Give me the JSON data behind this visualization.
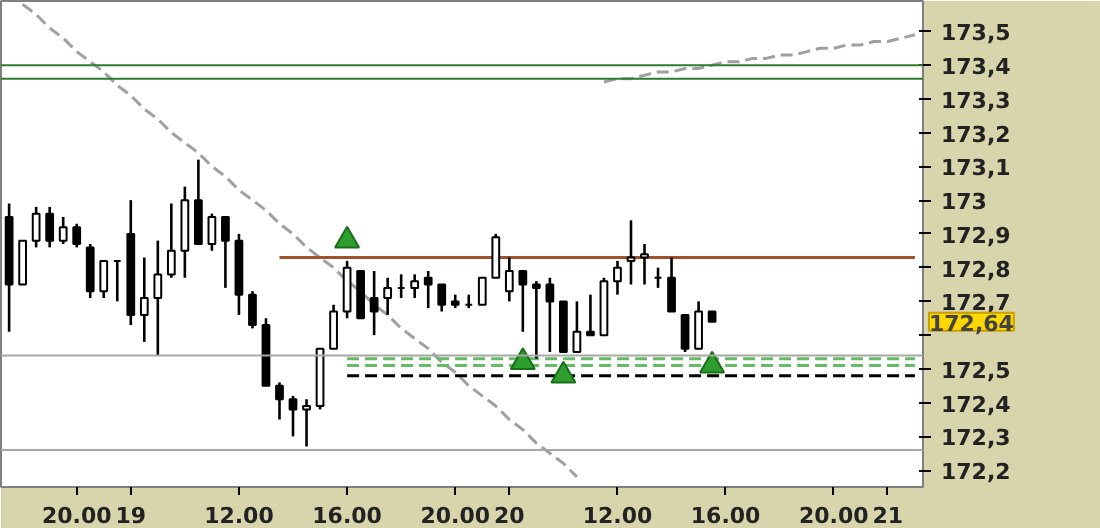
{
  "chart_data": {
    "type": "candlestick",
    "categories": [
      null,
      null,
      null,
      null,
      null,
      "20.00",
      null,
      null,
      null,
      "19",
      null,
      null,
      null,
      null,
      null,
      null,
      null,
      "12.00",
      null,
      null,
      null,
      null,
      null,
      null,
      null,
      "16.00",
      null,
      null,
      null,
      null,
      null,
      null,
      null,
      "20.00",
      null,
      null,
      null,
      "20",
      null,
      null,
      null,
      null,
      null,
      null,
      null,
      "12.00",
      null,
      null,
      null,
      null,
      null,
      null,
      null,
      "16.00",
      null,
      null,
      null,
      null,
      null,
      null,
      null,
      "20.00",
      null,
      null,
      null,
      "21",
      null,
      null
    ],
    "ohlc": [
      [
        172.95,
        172.99,
        172.61,
        172.75
      ],
      [
        172.75,
        172.88,
        172.75,
        172.88
      ],
      [
        172.88,
        172.98,
        172.86,
        172.96
      ],
      [
        172.96,
        172.98,
        172.86,
        172.88
      ],
      [
        172.88,
        172.95,
        172.87,
        172.92
      ],
      [
        172.92,
        172.93,
        172.86,
        172.87
      ],
      [
        172.86,
        172.87,
        172.71,
        172.73
      ],
      [
        172.73,
        172.82,
        172.71,
        172.82
      ],
      [
        172.82,
        172.82,
        172.7,
        172.82
      ],
      [
        172.9,
        173.0,
        172.63,
        172.66
      ],
      [
        172.66,
        172.83,
        172.58,
        172.71
      ],
      [
        172.71,
        172.88,
        172.54,
        172.78
      ],
      [
        172.78,
        172.99,
        172.77,
        172.85
      ],
      [
        172.85,
        173.04,
        172.77,
        173.0
      ],
      [
        173.0,
        173.12,
        172.87,
        172.87
      ],
      [
        172.87,
        172.96,
        172.85,
        172.95
      ],
      [
        172.95,
        172.95,
        172.74,
        172.88
      ],
      [
        172.88,
        172.9,
        172.66,
        172.72
      ],
      [
        172.72,
        172.73,
        172.62,
        172.63
      ],
      [
        172.63,
        172.65,
        172.45,
        172.45
      ],
      [
        172.45,
        172.46,
        172.35,
        172.41
      ],
      [
        172.41,
        172.42,
        172.3,
        172.38
      ],
      [
        172.38,
        172.41,
        172.27,
        172.39
      ],
      [
        172.39,
        172.56,
        172.38,
        172.56
      ],
      [
        172.56,
        172.69,
        172.56,
        172.67
      ],
      [
        172.67,
        172.82,
        172.65,
        172.8
      ],
      [
        172.79,
        172.79,
        172.65,
        172.65
      ],
      [
        172.71,
        172.79,
        172.6,
        172.67
      ],
      [
        172.71,
        172.77,
        172.66,
        172.74
      ],
      [
        172.74,
        172.78,
        172.71,
        172.74
      ],
      [
        172.74,
        172.78,
        172.71,
        172.76
      ],
      [
        172.77,
        172.79,
        172.68,
        172.75
      ],
      [
        172.75,
        172.75,
        172.67,
        172.69
      ],
      [
        172.7,
        172.72,
        172.68,
        172.69
      ],
      [
        172.69,
        172.72,
        172.68,
        172.69
      ],
      [
        172.69,
        172.77,
        172.69,
        172.77
      ],
      [
        172.77,
        172.9,
        172.77,
        172.89
      ],
      [
        172.73,
        172.83,
        172.7,
        172.79
      ],
      [
        172.79,
        172.79,
        172.61,
        172.75
      ],
      [
        172.75,
        172.76,
        172.53,
        172.74
      ],
      [
        172.75,
        172.77,
        172.55,
        172.7
      ],
      [
        172.7,
        172.7,
        172.55,
        172.55
      ],
      [
        172.55,
        172.7,
        172.55,
        172.61
      ],
      [
        172.61,
        172.72,
        172.6,
        172.6
      ],
      [
        172.6,
        172.77,
        172.6,
        172.76
      ],
      [
        172.76,
        172.82,
        172.72,
        172.8
      ],
      [
        172.82,
        172.94,
        172.75,
        172.83
      ],
      [
        172.83,
        172.87,
        172.75,
        172.84
      ],
      [
        172.77,
        172.8,
        172.74,
        172.77
      ],
      [
        172.77,
        172.83,
        172.67,
        172.67
      ],
      [
        172.66,
        172.66,
        172.55,
        172.56
      ],
      [
        172.56,
        172.7,
        172.56,
        172.67
      ],
      [
        172.67,
        172.67,
        172.64,
        172.64
      ],
      null,
      null,
      null,
      null,
      null,
      null,
      null,
      null,
      null,
      null,
      null,
      null,
      null,
      null,
      null
    ],
    "color": "#000000",
    "series": [
      {
        "type": "line",
        "color": "#a0a0a0",
        "line_style": "dashed",
        "values": [
          null,
          173.58,
          173.55,
          173.51,
          173.48,
          173.44,
          173.41,
          173.38,
          173.34,
          173.31,
          173.27,
          173.24,
          173.2,
          173.17,
          173.14,
          173.1,
          173.07,
          173.03,
          173.0,
          172.97,
          172.93,
          172.9,
          172.86,
          172.83,
          172.8,
          172.76,
          172.73,
          172.69,
          172.66,
          172.62,
          172.59,
          172.56,
          172.52,
          172.49,
          172.45,
          172.42,
          172.39,
          172.35,
          172.32,
          172.28,
          172.25,
          172.22,
          172.18,
          null,
          null,
          null,
          null,
          null,
          null,
          null,
          null,
          null,
          null,
          null,
          null,
          null,
          null,
          null,
          null,
          null,
          null,
          null,
          null,
          null,
          null,
          null,
          null,
          null
        ]
      },
      {
        "type": "line",
        "color": "#a0a0a0",
        "line_style": "dashed",
        "values": [
          null,
          null,
          null,
          null,
          null,
          null,
          null,
          null,
          null,
          null,
          null,
          null,
          null,
          null,
          null,
          null,
          null,
          null,
          null,
          null,
          null,
          null,
          null,
          null,
          null,
          null,
          null,
          null,
          null,
          null,
          null,
          null,
          null,
          null,
          null,
          null,
          null,
          null,
          null,
          null,
          null,
          null,
          null,
          null,
          173.35,
          173.36,
          173.36,
          173.37,
          173.38,
          173.38,
          173.39,
          173.39,
          173.4,
          173.41,
          173.41,
          173.42,
          173.42,
          173.43,
          173.43,
          173.44,
          173.45,
          173.45,
          173.46,
          173.46,
          173.47,
          173.47,
          173.48,
          173.49
        ]
      },
      {
        "type": "line",
        "color": "#a0522d",
        "line_style": "solid",
        "values": [
          null,
          null,
          null,
          null,
          null,
          null,
          null,
          null,
          null,
          null,
          null,
          null,
          null,
          null,
          null,
          null,
          null,
          null,
          null,
          null,
          172.83,
          172.83,
          172.83,
          172.83,
          172.83,
          172.83,
          172.83,
          172.83,
          172.83,
          172.83,
          172.83,
          172.83,
          172.83,
          172.83,
          172.83,
          172.83,
          172.83,
          172.83,
          172.83,
          172.83,
          172.83,
          172.83,
          172.83,
          172.83,
          172.83,
          172.83,
          172.83,
          172.83,
          172.83,
          172.83,
          172.83,
          172.83,
          172.83,
          172.83,
          172.83,
          172.83,
          172.83,
          172.83,
          172.83,
          172.83,
          172.83,
          172.83,
          172.83,
          172.83,
          172.83,
          172.83,
          172.83,
          172.83
        ]
      },
      {
        "type": "line",
        "color": "#66bb66",
        "line_style": "dashed",
        "values": [
          null,
          null,
          null,
          null,
          null,
          null,
          null,
          null,
          null,
          null,
          null,
          null,
          null,
          null,
          null,
          null,
          null,
          null,
          null,
          null,
          null,
          null,
          null,
          null,
          null,
          172.53,
          172.53,
          172.53,
          172.53,
          172.53,
          172.53,
          172.53,
          172.53,
          172.53,
          172.53,
          172.53,
          172.53,
          172.53,
          172.53,
          172.53,
          172.53,
          172.53,
          172.53,
          172.53,
          172.53,
          172.53,
          172.53,
          172.53,
          172.53,
          172.53,
          172.53,
          172.53,
          172.53,
          172.53,
          172.53,
          172.53,
          172.53,
          172.53,
          172.53,
          172.53,
          172.53,
          172.53,
          172.53,
          172.53,
          172.53,
          172.53,
          172.53,
          172.53
        ]
      },
      {
        "type": "line",
        "color": "#66bb66",
        "line_style": "dashed",
        "values": [
          null,
          null,
          null,
          null,
          null,
          null,
          null,
          null,
          null,
          null,
          null,
          null,
          null,
          null,
          null,
          null,
          null,
          null,
          null,
          null,
          null,
          null,
          null,
          null,
          null,
          172.51,
          172.51,
          172.51,
          172.51,
          172.51,
          172.51,
          172.51,
          172.51,
          172.51,
          172.51,
          172.51,
          172.51,
          172.51,
          172.51,
          172.51,
          172.51,
          172.51,
          172.51,
          172.51,
          172.51,
          172.51,
          172.51,
          172.51,
          172.51,
          172.51,
          172.51,
          172.51,
          172.51,
          172.51,
          172.51,
          172.51,
          172.51,
          172.51,
          172.51,
          172.51,
          172.51,
          172.51,
          172.51,
          172.51,
          172.51,
          172.51,
          172.51,
          172.51
        ]
      },
      {
        "type": "line",
        "color": "#000000",
        "line_style": "dashed",
        "values": [
          null,
          null,
          null,
          null,
          null,
          null,
          null,
          null,
          null,
          null,
          null,
          null,
          null,
          null,
          null,
          null,
          null,
          null,
          null,
          null,
          null,
          null,
          null,
          null,
          null,
          172.48,
          172.48,
          172.48,
          172.48,
          172.48,
          172.48,
          172.48,
          172.48,
          172.48,
          172.48,
          172.48,
          172.48,
          172.48,
          172.48,
          172.48,
          172.48,
          172.48,
          172.48,
          172.48,
          172.48,
          172.48,
          172.48,
          172.48,
          172.48,
          172.48,
          172.48,
          172.48,
          172.48,
          172.48,
          172.48,
          172.48,
          172.48,
          172.48,
          172.48,
          172.48,
          172.48,
          172.48,
          172.48,
          172.48,
          172.48,
          172.48,
          172.48,
          172.48
        ]
      },
      {
        "type": "scatter",
        "marker": "triangle",
        "color": "#2e9e2e",
        "values": [
          null,
          null,
          null,
          null,
          null,
          null,
          null,
          null,
          null,
          null,
          null,
          null,
          null,
          null,
          null,
          null,
          null,
          null,
          null,
          null,
          null,
          null,
          null,
          null,
          null,
          172.88,
          null,
          null,
          null,
          null,
          null,
          null,
          null,
          null,
          null,
          null,
          null,
          null,
          172.52,
          null,
          null,
          172.48,
          null,
          null,
          null,
          null,
          null,
          null,
          null,
          null,
          null,
          null,
          172.51,
          null,
          null,
          null,
          null,
          null,
          null,
          null,
          null,
          null,
          null,
          null,
          null,
          null,
          null,
          null
        ]
      }
    ],
    "ref_lines": [
      {
        "axis": "y",
        "value": 173.4,
        "label": null,
        "color": "#2e7d2e"
      },
      {
        "axis": "y",
        "value": 173.36,
        "label": null,
        "color": "#2e7d2e"
      },
      {
        "axis": "y",
        "value": 172.54,
        "label": null,
        "color": "#a8a8a8"
      },
      {
        "axis": "y",
        "value": 172.26,
        "label": null,
        "color": "#a8a8a8"
      }
    ],
    "annotations": [
      "172,64"
    ],
    "ylim": [
      172.15,
      173.59
    ],
    "yticks": [
      {
        "value": 172.2,
        "label": "172,2"
      },
      {
        "value": 172.3,
        "label": "172,3"
      },
      {
        "value": 172.4,
        "label": "172,4"
      },
      {
        "value": 172.5,
        "label": "172,5"
      },
      {
        "value": 172.6,
        "label": null
      },
      {
        "value": 172.7,
        "label": "172,7"
      },
      {
        "value": 172.8,
        "label": "172,8"
      },
      {
        "value": 172.9,
        "label": "172,9"
      },
      {
        "value": 173.0,
        "label": "173"
      },
      {
        "value": 173.1,
        "label": "173,1"
      },
      {
        "value": 173.2,
        "label": "173,2"
      },
      {
        "value": 173.3,
        "label": "173,3"
      },
      {
        "value": 173.4,
        "label": "173,4"
      },
      {
        "value": 173.5,
        "label": "173,5"
      }
    ],
    "grid": false
  }
}
